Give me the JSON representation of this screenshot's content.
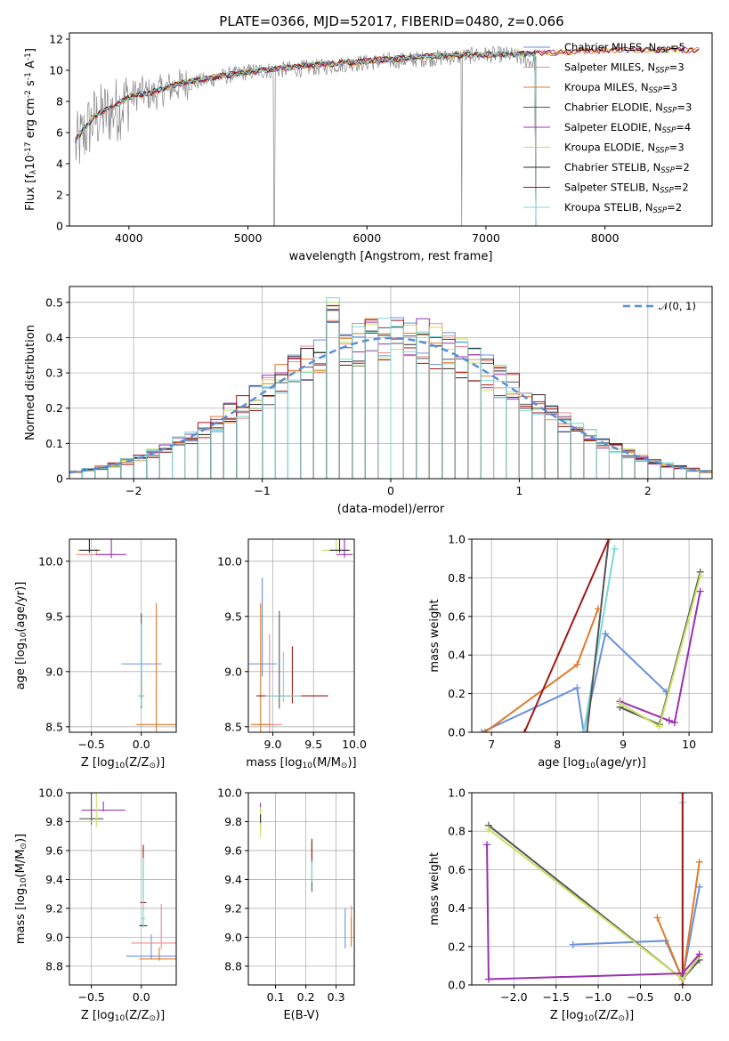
{
  "figure": {
    "title": "PLATE=0366, MJD=52017, FIBERID=0480, z=0.066"
  },
  "model_colors": [
    "#6a8fde",
    "#f08a8a",
    "#e07a2a",
    "#555555",
    "#9a30b0",
    "#c8e060",
    "#2a2a2a",
    "#a01818",
    "#7ad8d8"
  ],
  "chart_data": [
    {
      "id": "spectrum",
      "type": "line",
      "xlabel": "wavelength [Angstrom, rest frame]",
      "ylabel": "Flux [f$_\\lambda$10$^{-17}$ erg cm$^{-2}$ s$^{-1}$ A$^{-1}$]",
      "xlim": [
        3500,
        8900
      ],
      "ylim": [
        0,
        12.4
      ],
      "xticks": [
        4000,
        5000,
        6000,
        7000,
        8000
      ],
      "yticks": [
        0,
        2,
        4,
        6,
        8,
        10,
        12
      ],
      "grid": false,
      "legend": "right",
      "legend_entries": [
        {
          "label": "Chabrier MILES, N",
          "sub": "SSP",
          "val": "=5"
        },
        {
          "label": "Salpeter MILES, N",
          "sub": "SSP",
          "val": "=3"
        },
        {
          "label": "Kroupa MILES, N",
          "sub": "SSP",
          "val": "=3"
        },
        {
          "label": "Chabrier ELODIE, N",
          "sub": "SSP",
          "val": "=3"
        },
        {
          "label": "Salpeter ELODIE, N",
          "sub": "SSP",
          "val": "=4"
        },
        {
          "label": "Kroupa ELODIE, N",
          "sub": "SSP",
          "val": "=3"
        },
        {
          "label": "Chabrier STELIB, N",
          "sub": "SSP",
          "val": "=2"
        },
        {
          "label": "Salpeter STELIB, N",
          "sub": "SSP",
          "val": "=2"
        },
        {
          "label": "Kroupa STELIB, N",
          "sub": "SSP",
          "val": "=2"
        }
      ],
      "data_wavelength": [
        3550,
        3600,
        3650,
        3700,
        3800,
        3900,
        4000,
        4100,
        4200,
        4300,
        4400,
        4600,
        4800,
        5000,
        5200,
        5400,
        5600,
        5800,
        6000,
        6200,
        6400,
        6600,
        6800,
        7000,
        7200,
        7400
      ],
      "data_flux": [
        5.0,
        5.6,
        6.2,
        6.8,
        7.2,
        7.5,
        8.2,
        8.6,
        8.4,
        8.8,
        9.0,
        9.3,
        9.6,
        9.9,
        10.0,
        10.1,
        10.2,
        10.4,
        10.5,
        10.6,
        10.7,
        10.8,
        10.9,
        11.0,
        11.0,
        10.5
      ],
      "model_wavelength": [
        3550,
        3700,
        3900,
        4000,
        4200,
        4500,
        5000,
        5500,
        6000,
        6500,
        7000,
        7500,
        8000,
        8500,
        8800
      ],
      "model_flux": [
        5.5,
        7.0,
        7.8,
        8.3,
        8.6,
        9.3,
        9.9,
        10.3,
        10.6,
        10.9,
        11.0,
        11.1,
        11.3,
        11.3,
        11.3
      ],
      "model_start": [
        3550,
        3550,
        3550,
        3550,
        3550,
        3550,
        3550,
        3550,
        3550
      ],
      "model_end": [
        7420,
        7420,
        8800,
        7420,
        8800,
        8800,
        7420,
        8800,
        7420
      ]
    },
    {
      "id": "residual-histogram",
      "type": "line",
      "xlabel": "(data-model)/error",
      "ylabel": "Normed distribution",
      "xlim": [
        -2.5,
        2.5
      ],
      "ylim": [
        0,
        0.545
      ],
      "xticks": [
        -2,
        -1,
        0,
        1,
        2
      ],
      "yticks": [
        0.0,
        0.1,
        0.2,
        0.3,
        0.4,
        0.5
      ],
      "grid": true,
      "legend": "top-right",
      "gaussian_label": "𝒩(0, 1)",
      "gaussian_color": "#5b8fd6",
      "bin_width": 0.1
    },
    {
      "id": "age-vs-z",
      "type": "scatter",
      "xlabel": "Z [log$_{10}$(Z/Z$_\\odot$)]",
      "ylabel": "age  [log$_{10}$(age/yr)]",
      "xlim": [
        -0.72,
        0.35
      ],
      "ylim": [
        8.45,
        10.2
      ],
      "xticks": [
        -0.5,
        0.0
      ],
      "yticks": [
        8.5,
        9.0,
        9.5,
        10.0
      ],
      "grid": true,
      "points": [
        {
          "x": 0.0,
          "y": 9.07,
          "xerr": 0.2,
          "yerr": 0.3,
          "c": 0
        },
        {
          "x": -0.45,
          "y": 10.06,
          "xerr": 0.2,
          "yerr": 0.05,
          "c": 1
        },
        {
          "x": 0.15,
          "y": 8.52,
          "xerr": 0.2,
          "yerr": 1.1,
          "c": 2
        },
        {
          "x": 0.0,
          "y": 8.78,
          "xerr": 0.03,
          "yerr": 0.75,
          "c": 3
        },
        {
          "x": -0.3,
          "y": 10.06,
          "xerr": 0.15,
          "yerr": 0.2,
          "c": 4
        },
        {
          "x": -0.52,
          "y": 10.1,
          "xerr": 0.12,
          "yerr": 0.15,
          "c": 5
        },
        {
          "x": -0.52,
          "y": 10.1,
          "xerr": 0.1,
          "yerr": 0.15,
          "c": 6
        },
        {
          "x": 0.0,
          "y": 8.78,
          "xerr": 0.02,
          "yerr": 0.2,
          "c": 7
        },
        {
          "x": 0.0,
          "y": 8.78,
          "xerr": 0.03,
          "yerr": 0.65,
          "c": 8
        }
      ]
    },
    {
      "id": "age-vs-mass",
      "type": "scatter",
      "xlabel": "mass [log$_{10}$(M/M$_\\odot$)]",
      "ylabel": "",
      "xlim": [
        8.7,
        10.0
      ],
      "ylim": [
        8.45,
        10.2
      ],
      "xticks": [
        9.0,
        9.5,
        10.0
      ],
      "yticks": [
        8.5,
        9.0,
        9.5,
        10.0
      ],
      "grid": true,
      "points": [
        {
          "x": 8.87,
          "y": 9.07,
          "xerr": 0.18,
          "yerr": 0.78,
          "c": 0
        },
        {
          "x": 8.96,
          "y": 8.52,
          "xerr": 0.15,
          "yerr": 0.82,
          "c": 1
        },
        {
          "x": 8.85,
          "y": 8.52,
          "xerr": 0.12,
          "yerr": 1.1,
          "c": 2
        },
        {
          "x": 9.08,
          "y": 8.78,
          "xerr": 0.06,
          "yerr": 0.77,
          "c": 3
        },
        {
          "x": 9.88,
          "y": 10.06,
          "xerr": 0.1,
          "yerr": 0.18,
          "c": 4
        },
        {
          "x": 9.78,
          "y": 10.1,
          "xerr": 0.18,
          "yerr": 0.17,
          "c": 5
        },
        {
          "x": 9.82,
          "y": 10.1,
          "xerr": 0.12,
          "yerr": 0.15,
          "c": 6
        },
        {
          "x": 9.24,
          "y": 8.78,
          "xerr": 0.44,
          "yerr": 0.45,
          "c": 7
        },
        {
          "x": 9.13,
          "y": 8.78,
          "xerr": 0.22,
          "yerr": 0.4,
          "c": 8
        }
      ]
    },
    {
      "id": "mass-weight-vs-age",
      "type": "line",
      "xlabel": "age  [log$_{10}$(age/yr)]",
      "ylabel": "mass weight",
      "xlim": [
        6.7,
        10.35
      ],
      "ylim": [
        0,
        1.0
      ],
      "xticks": [
        7,
        8,
        9,
        10
      ],
      "yticks": [
        0.0,
        0.2,
        0.4,
        0.6,
        0.8,
        1.0
      ],
      "grid": true,
      "series": [
        {
          "c": 0,
          "x": [
            6.85,
            8.3,
            8.4,
            8.73,
            9.65
          ],
          "y": [
            0.0,
            0.23,
            0.0,
            0.51,
            0.21
          ]
        },
        {
          "c": 8,
          "x": [
            8.4,
            8.87
          ],
          "y": [
            0.0,
            0.95
          ]
        },
        {
          "c": 3,
          "x": [
            8.45,
            8.78
          ],
          "y": [
            0.0,
            1.0
          ]
        },
        {
          "c": 2,
          "x": [
            6.9,
            8.3,
            8.62
          ],
          "y": [
            0.0,
            0.35,
            0.64
          ]
        },
        {
          "c": 7,
          "x": [
            7.5,
            8.78
          ],
          "y": [
            0.0,
            1.0
          ]
        },
        {
          "c": 4,
          "x": [
            8.95,
            9.7,
            9.78,
            10.17
          ],
          "y": [
            0.16,
            0.06,
            0.05,
            0.73
          ]
        },
        {
          "c": 3,
          "x": [
            8.95,
            9.55,
            10.17
          ],
          "y": [
            0.13,
            0.04,
            0.83
          ]
        },
        {
          "c": 5,
          "x": [
            8.95,
            9.55,
            10.17
          ],
          "y": [
            0.15,
            0.03,
            0.81
          ]
        }
      ]
    },
    {
      "id": "mass-vs-z",
      "type": "scatter",
      "xlabel": "Z [log$_{10}$(Z/Z$_\\odot$)]",
      "ylabel": "mass [log$_{10}$(M/M$_\\odot$)]",
      "xlim": [
        -0.72,
        0.35
      ],
      "ylim": [
        8.67,
        10.0
      ],
      "xticks": [
        -0.5,
        0.0
      ],
      "yticks": [
        8.8,
        9.0,
        9.2,
        9.4,
        9.6,
        9.8,
        10.0
      ],
      "grid": true,
      "points": [
        {
          "x": 0.1,
          "y": 8.87,
          "xerr": 0.25,
          "yerr": 0.15,
          "c": 0
        },
        {
          "x": 0.2,
          "y": 8.96,
          "xerr": 0.3,
          "yerr": 0.27,
          "c": 1
        },
        {
          "x": 0.18,
          "y": 8.85,
          "xerr": 0.2,
          "yerr": 0.08,
          "c": 2
        },
        {
          "x": -0.5,
          "y": 9.82,
          "xerr": 0.12,
          "yerr": 0.27,
          "c": 3
        },
        {
          "x": -0.38,
          "y": 9.88,
          "xerr": 0.22,
          "yerr": 0.06,
          "c": 4
        },
        {
          "x": -0.45,
          "y": 9.8,
          "xerr": 0.15,
          "yerr": 0.25,
          "c": 5
        },
        {
          "x": 0.02,
          "y": 9.08,
          "xerr": 0.04,
          "yerr": 0.05,
          "c": 6
        },
        {
          "x": 0.02,
          "y": 9.24,
          "xerr": 0.03,
          "yerr": 0.4,
          "c": 7
        },
        {
          "x": 0.02,
          "y": 9.13,
          "xerr": 0.02,
          "yerr": 0.42,
          "c": 8
        }
      ]
    },
    {
      "id": "mass-vs-ebv",
      "type": "scatter",
      "xlabel": "E(B-V)",
      "ylabel": "",
      "xlim": [
        0.01,
        0.36
      ],
      "ylim": [
        8.67,
        10.0
      ],
      "xticks": [
        0.1,
        0.2,
        0.3
      ],
      "yticks": [
        8.8,
        9.0,
        9.2,
        9.4,
        9.6,
        9.8,
        10.0
      ],
      "grid": true,
      "points": [
        {
          "x": 0.33,
          "y": 8.96,
          "xerr": 0,
          "yerr": 0.24,
          "c": 0
        },
        {
          "x": 0.35,
          "y": 9.0,
          "xerr": 0,
          "yerr": 0.22,
          "c": 1
        },
        {
          "x": 0.35,
          "y": 8.96,
          "xerr": 0,
          "yerr": 0.18,
          "c": 2
        },
        {
          "x": 0.22,
          "y": 9.36,
          "xerr": 0,
          "yerr": 0.3,
          "c": 3
        },
        {
          "x": 0.05,
          "y": 9.78,
          "xerr": 0,
          "yerr": 0.15,
          "c": 4
        },
        {
          "x": 0.05,
          "y": 9.72,
          "xerr": 0,
          "yerr": 0.18,
          "c": 5
        },
        {
          "x": 0.05,
          "y": 9.8,
          "xerr": 0,
          "yerr": 0.05,
          "c": 6
        },
        {
          "x": 0.22,
          "y": 9.56,
          "xerr": 0,
          "yerr": 0.12,
          "c": 7
        },
        {
          "x": 0.22,
          "y": 9.4,
          "xerr": 0,
          "yerr": 0.12,
          "c": 8
        }
      ]
    },
    {
      "id": "mass-weight-vs-z",
      "type": "line",
      "xlabel": "Z [log$_{10}$(Z/Z$_\\odot$)]",
      "ylabel": "mass weight",
      "xlim": [
        -2.5,
        0.35
      ],
      "ylim": [
        0,
        1.0
      ],
      "xticks": [
        -2.0,
        -1.5,
        -1.0,
        -0.5,
        0.0
      ],
      "yticks": [
        0.0,
        0.2,
        0.4,
        0.6,
        0.8,
        1.0
      ],
      "grid": true,
      "series": [
        {
          "c": 0,
          "x": [
            -1.3,
            -0.2,
            0.0,
            0.2
          ],
          "y": [
            0.21,
            0.23,
            0.03,
            0.51
          ]
        },
        {
          "c": 2,
          "x": [
            -0.3,
            0.0,
            0.2
          ],
          "y": [
            0.35,
            0.03,
            0.64
          ]
        },
        {
          "c": 8,
          "x": [
            0.0,
            0.0
          ],
          "y": [
            0.0,
            0.95
          ]
        },
        {
          "c": 7,
          "x": [
            0.0,
            0.0
          ],
          "y": [
            0.0,
            1.0
          ]
        },
        {
          "c": 3,
          "x": [
            -2.3,
            0.0,
            0.2
          ],
          "y": [
            0.83,
            0.03,
            0.13
          ]
        },
        {
          "c": 5,
          "x": [
            -2.3,
            0.0,
            0.2
          ],
          "y": [
            0.81,
            0.03,
            0.15
          ]
        },
        {
          "c": 4,
          "x": [
            -2.32,
            -2.3,
            0.0,
            0.2
          ],
          "y": [
            0.73,
            0.03,
            0.06,
            0.16
          ]
        }
      ]
    }
  ]
}
